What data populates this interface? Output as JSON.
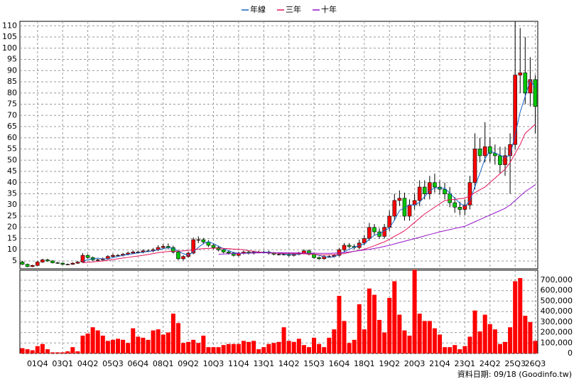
{
  "chart_data": [
    {
      "type": "candlestick",
      "up_color": "#ff0000",
      "down_color": "#00c800",
      "grid": true,
      "ylim": [
        1.5,
        112
      ],
      "yticks": [
        5,
        10,
        15,
        20,
        25,
        30,
        35,
        40,
        45,
        50,
        55,
        60,
        65,
        70,
        75,
        80,
        85,
        90,
        95,
        100,
        105,
        110
      ],
      "open": [
        4.5,
        3.5,
        2.5,
        3.0,
        4.5,
        5.5,
        5.0,
        4.2,
        4.0,
        3.5,
        3.5,
        4.0,
        4.5,
        7.5,
        6.5,
        5.5,
        5.5,
        6.0,
        7.0,
        7.5,
        7.5,
        8.0,
        8.5,
        9.0,
        9.0,
        9.5,
        9.5,
        10.0,
        11.0,
        11.5,
        11.0,
        9.0,
        6.0,
        7.0,
        8.5,
        14.5,
        14.5,
        13.5,
        12.0,
        11.0,
        10.0,
        9.0,
        8.5,
        7.5,
        8.5,
        9.0,
        8.5,
        9.0,
        9.0,
        9.0,
        8.5,
        8.0,
        8.0,
        8.0,
        7.5,
        8.0,
        8.5,
        9.5,
        8.0,
        6.5,
        6.0,
        7.0,
        7.0,
        7.5,
        10.0,
        12.0,
        11.5,
        11.0,
        13.0,
        15.0,
        20.0,
        18.0,
        16.0,
        20.0,
        25.0,
        32.0,
        33.0,
        25.0,
        30.0,
        32.0,
        38.0,
        35.0,
        40.0,
        38.0,
        37.0,
        35.0,
        31.0,
        29.0,
        28.0,
        30.0,
        40.0,
        55.0,
        52.0,
        56.0,
        53.0,
        52.0,
        48.0,
        52.0,
        57.0,
        88.0,
        89.0,
        80.0,
        86.0
      ],
      "high": [
        5.0,
        3.8,
        3.3,
        4.9,
        6.0,
        6.0,
        5.4,
        4.6,
        4.3,
        3.8,
        4.4,
        4.9,
        8.5,
        8.0,
        7.0,
        6.0,
        6.5,
        7.6,
        8.2,
        8.1,
        8.6,
        9.2,
        9.7,
        9.7,
        10.2,
        10.2,
        10.8,
        12.0,
        12.5,
        12.8,
        11.8,
        9.7,
        7.6,
        9.2,
        15.5,
        16.0,
        15.3,
        14.3,
        12.8,
        11.8,
        10.6,
        9.6,
        9.1,
        9.1,
        9.6,
        9.6,
        9.6,
        9.6,
        9.6,
        9.6,
        9.0,
        8.5,
        8.5,
        8.5,
        8.5,
        9.1,
        10.2,
        10.2,
        8.6,
        7.0,
        7.5,
        7.5,
        8.0,
        10.8,
        13.0,
        13.0,
        12.5,
        14.5,
        16.5,
        22.0,
        21.5,
        19.5,
        21.5,
        27.5,
        35.0,
        36.5,
        35.5,
        32.5,
        35.0,
        41.0,
        41,
        43,
        44,
        41,
        40,
        38,
        33.5,
        31.5,
        32.5,
        43,
        62,
        60,
        67,
        60,
        57,
        56,
        56,
        62,
        112,
        109,
        105,
        96,
        88
      ],
      "low": [
        3.2,
        2.2,
        2.3,
        2.8,
        4.2,
        4.6,
        3.9,
        3.7,
        3.2,
        3.2,
        3.3,
        3.7,
        4.3,
        6.0,
        5.1,
        5.1,
        5.1,
        5.6,
        6.5,
        7.0,
        7.0,
        7.5,
        8.0,
        8.4,
        8.4,
        8.9,
        8.9,
        9.4,
        10.3,
        10.2,
        8.3,
        5.4,
        5.2,
        6.4,
        8.0,
        13.0,
        12.5,
        11.2,
        10.2,
        9.3,
        8.4,
        7.9,
        7.0,
        7.0,
        7.9,
        7.9,
        7.9,
        8.4,
        8.4,
        7.9,
        7.5,
        7.5,
        7.5,
        7.0,
        7.0,
        7.5,
        8.0,
        7.5,
        6.0,
        5.5,
        5.6,
        6.5,
        6.5,
        7.0,
        9.3,
        10.7,
        10.2,
        10.2,
        12.0,
        14.0,
        16.5,
        15.0,
        15.0,
        18.5,
        23.0,
        29.5,
        23.0,
        23.0,
        28.0,
        29.5,
        32.5,
        32.5,
        35.5,
        34.5,
        32.5,
        29.0,
        26.5,
        25.5,
        25.5,
        28.0,
        37,
        49,
        49,
        49,
        48,
        44,
        43,
        35,
        55,
        80,
        75,
        74,
        62
      ],
      "close": [
        3.5,
        2.5,
        3.0,
        4.5,
        5.5,
        5.0,
        4.2,
        4.0,
        3.5,
        3.5,
        4.0,
        4.5,
        7.5,
        6.5,
        5.5,
        5.5,
        6.0,
        7.0,
        7.5,
        7.5,
        8.0,
        8.5,
        9.0,
        9.0,
        9.5,
        9.5,
        10.0,
        11.0,
        11.5,
        11.0,
        9.0,
        6.0,
        7.0,
        8.5,
        14.5,
        14.5,
        13.5,
        12.0,
        11.0,
        10.0,
        9.0,
        8.5,
        7.5,
        8.5,
        9.0,
        8.5,
        9.0,
        9.0,
        9.0,
        8.5,
        8.0,
        8.0,
        8.0,
        7.5,
        8.0,
        8.5,
        9.5,
        8.0,
        6.5,
        6.0,
        7.0,
        7.0,
        7.5,
        10.0,
        12.0,
        11.5,
        11.0,
        13.0,
        15.0,
        20.0,
        18.0,
        16.0,
        20.0,
        25.0,
        32.0,
        33.0,
        25.0,
        30.0,
        32.0,
        38.0,
        35.0,
        40.0,
        38.0,
        37.0,
        35.0,
        31.0,
        29.0,
        28.0,
        30.0,
        40.0,
        55.0,
        52.0,
        56.0,
        53.0,
        52.0,
        48.0,
        52.0,
        57.0,
        88.0,
        89.0,
        80.0,
        86.0,
        74.0
      ],
      "series": [
        {
          "name": "年線",
          "color": "#1464c8",
          "values": [
            null,
            null,
            null,
            null,
            null,
            null,
            null,
            null,
            null,
            null,
            null,
            null,
            4.9,
            5.6,
            6.0,
            6.25,
            5.9,
            6.0,
            6.5,
            7.0,
            7.5,
            7.9,
            8.25,
            8.6,
            8.9,
            9.25,
            9.5,
            10.0,
            10.5,
            10.9,
            10.6,
            9.4,
            8.25,
            7.6,
            9.0,
            11.1,
            12.75,
            13.6,
            12.75,
            11.6,
            10.5,
            9.6,
            8.75,
            8.4,
            8.4,
            8.4,
            8.75,
            8.9,
            8.9,
            8.9,
            8.6,
            8.4,
            8.1,
            7.9,
            7.9,
            8.0,
            8.4,
            8.5,
            8.1,
            7.5,
            6.9,
            6.6,
            6.9,
            7.9,
            9.1,
            10.25,
            11.1,
            11.9,
            12.6,
            14.75,
            16.5,
            17.25,
            18.5,
            19.75,
            23.25,
            27.5,
            28.75,
            30,
            30,
            31.25,
            33.75,
            36.25,
            37.75,
            37.5,
            37.5,
            35.25,
            33,
            30.75,
            29.5,
            31.75,
            38.25,
            44.25,
            50.75,
            54,
            53.25,
            52.25,
            51.25,
            52.25,
            61.25,
            71.5,
            78.5,
            85.75,
            82.25
          ]
        },
        {
          "name": "三年",
          "color": "#e6145a",
          "values": [
            null,
            null,
            null,
            null,
            null,
            null,
            null,
            null,
            null,
            null,
            null,
            null,
            4.2,
            4.4,
            4.6,
            4.8,
            5.0,
            5.3,
            5.6,
            6.0,
            6.3,
            6.6,
            6.9,
            7.2,
            7.5,
            7.9,
            8.3,
            8.7,
            9.0,
            9.2,
            9.3,
            9.4,
            9.5,
            9.7,
            10.0,
            10.3,
            10.5,
            10.6,
            10.7,
            10.7,
            10.6,
            10.5,
            10.3,
            10.2,
            10.0,
            9.6,
            9.3,
            9.0,
            8.7,
            8.6,
            8.5,
            8.5,
            8.4,
            8.4,
            8.3,
            8.3,
            8.2,
            8.1,
            8.0,
            7.8,
            7.7,
            7.8,
            7.9,
            8.1,
            8.3,
            8.8,
            9.3,
            9.7,
            10.2,
            11.0,
            11.8,
            12.7,
            13.5,
            14.7,
            16.0,
            17.2,
            18.5,
            20.3,
            22.2,
            24.1,
            26.0,
            27.5,
            29.0,
            30.5,
            32.0,
            32.3,
            32.5,
            32.8,
            33.0,
            34.2,
            35.5,
            36.8,
            38.0,
            40.0,
            42.0,
            44.0,
            46.0,
            49.0,
            53.0,
            57.0,
            62.0,
            64.0,
            66.0
          ]
        },
        {
          "name": "十年",
          "color": "#9614c8",
          "values": [
            null,
            null,
            null,
            null,
            null,
            null,
            null,
            null,
            null,
            null,
            null,
            null,
            null,
            null,
            null,
            null,
            null,
            null,
            null,
            null,
            null,
            null,
            null,
            null,
            null,
            null,
            null,
            null,
            null,
            null,
            null,
            null,
            null,
            null,
            null,
            null,
            null,
            null,
            null,
            8.0,
            8.1,
            8.2,
            8.3,
            8.4,
            8.5,
            8.5,
            8.6,
            8.6,
            8.7,
            8.7,
            8.7,
            8.7,
            8.7,
            8.6,
            8.6,
            8.6,
            8.5,
            8.5,
            8.5,
            8.4,
            8.4,
            8.4,
            8.5,
            8.6,
            8.8,
            9.0,
            9.3,
            9.6,
            9.9,
            10.2,
            10.6,
            11.0,
            11.5,
            12.0,
            12.6,
            13.2,
            13.8,
            14.4,
            15.0,
            15.6,
            16.2,
            16.8,
            17.4,
            18.0,
            18.5,
            19.0,
            19.5,
            20.0,
            20.5,
            21.5,
            22.5,
            23.5,
            24.5,
            25.5,
            26.5,
            27.5,
            28.5,
            30.0,
            32.0,
            34.0,
            36.0,
            37.5,
            39.0
          ]
        }
      ]
    },
    {
      "type": "bar",
      "color": "#ff0000",
      "grid": true,
      "note": "資料日期: 09/18 (Goodinfo.tw)",
      "categories": [
        null,
        null,
        null,
        "01Q4",
        null,
        null,
        null,
        null,
        "03Q1",
        null,
        null,
        null,
        null,
        "04Q2",
        null,
        null,
        null,
        null,
        "05Q3",
        null,
        null,
        null,
        null,
        "06Q4",
        null,
        null,
        null,
        null,
        "08Q1",
        null,
        null,
        null,
        null,
        "09Q2",
        null,
        null,
        null,
        null,
        "10Q3",
        null,
        null,
        null,
        null,
        "11Q4",
        null,
        null,
        null,
        null,
        "13Q1",
        null,
        null,
        null,
        null,
        "14Q2",
        null,
        null,
        null,
        null,
        "15Q3",
        null,
        null,
        null,
        null,
        "16Q4",
        null,
        null,
        null,
        null,
        "18Q1",
        null,
        null,
        null,
        null,
        "19Q2",
        null,
        null,
        null,
        null,
        "20Q3",
        null,
        null,
        null,
        null,
        "21Q4",
        null,
        null,
        null,
        null,
        "23Q1",
        null,
        null,
        null,
        null,
        "24Q2",
        null,
        null,
        null,
        null,
        "25Q3",
        null,
        null,
        null,
        "26Q3"
      ],
      "values": [
        50000,
        40000,
        30000,
        70000,
        90000,
        40000,
        10000,
        10000,
        10000,
        20000,
        60000,
        20000,
        170000,
        190000,
        250000,
        220000,
        170000,
        120000,
        130000,
        140000,
        130000,
        100000,
        240000,
        160000,
        150000,
        130000,
        220000,
        230000,
        180000,
        200000,
        380000,
        290000,
        100000,
        110000,
        130000,
        100000,
        170000,
        60000,
        60000,
        60000,
        80000,
        90000,
        90000,
        90000,
        120000,
        110000,
        120000,
        40000,
        60000,
        90000,
        100000,
        110000,
        250000,
        120000,
        110000,
        140000,
        80000,
        60000,
        150000,
        90000,
        60000,
        150000,
        230000,
        550000,
        310000,
        100000,
        130000,
        470000,
        230000,
        620000,
        560000,
        320000,
        200000,
        530000,
        690000,
        370000,
        220000,
        170000,
        800000,
        380000,
        310000,
        310000,
        240000,
        180000,
        60000,
        60000,
        80000,
        40000,
        70000,
        160000,
        410000,
        210000,
        370000,
        280000,
        230000,
        90000,
        110000,
        250000,
        690000,
        720000,
        360000,
        300000,
        120000
      ],
      "ylim": [
        0,
        795000
      ],
      "yticks": [
        0,
        {
          "value": 100000,
          "label": "100,000"
        },
        {
          "value": 200000,
          "label": "200,000"
        },
        {
          "value": 300000,
          "label": "300,000"
        },
        {
          "value": 400000,
          "label": "400,000"
        },
        {
          "value": 500000,
          "label": "500,000"
        },
        {
          "value": 600000,
          "label": "600,000"
        },
        {
          "value": 700000,
          "label": "700,000"
        }
      ]
    }
  ]
}
